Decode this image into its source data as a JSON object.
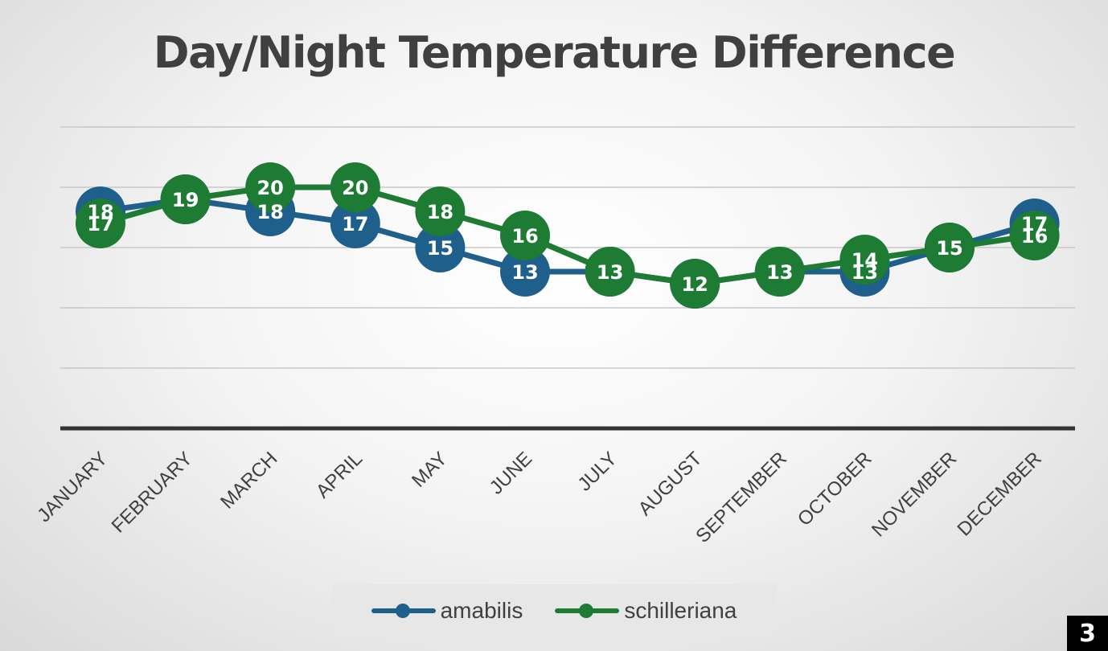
{
  "chart_data": {
    "type": "line",
    "title": "Day/Night Temperature Difference",
    "categories": [
      "JANUARY",
      "FEBRUARY",
      "MARCH",
      "APRIL",
      "MAY",
      "JUNE",
      "JULY",
      "AUGUST",
      "SEPTEMBER",
      "OCTOBER",
      "NOVEMBER",
      "DECEMBER"
    ],
    "series": [
      {
        "name": "amabilis",
        "color": "#1f5f8b",
        "values": [
          18,
          19,
          18,
          17,
          15,
          13,
          13,
          12,
          13,
          13,
          15,
          17
        ]
      },
      {
        "name": "schilleriana",
        "color": "#1e7b34",
        "values": [
          17,
          19,
          20,
          20,
          18,
          16,
          13,
          12,
          13,
          14,
          15,
          16
        ]
      }
    ],
    "ylim": [
      0,
      25
    ],
    "grid": true,
    "data_labels": true,
    "legend_position": "bottom"
  },
  "page_number": "3"
}
